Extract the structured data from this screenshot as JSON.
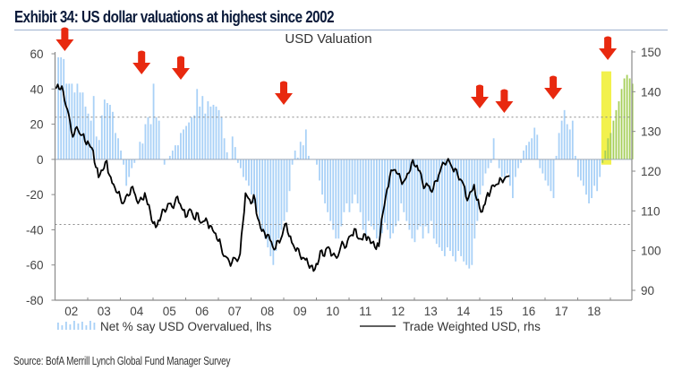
{
  "header": {
    "exhibit_title": "Exhibit 34: US dollar valuations at highest since 2002"
  },
  "footer": {
    "source": "Source: BofA Merrill Lynch Global Fund Manager Survey"
  },
  "colors": {
    "bars": "#a9d1f7",
    "line": "#000000",
    "arrow": "#e8290f",
    "highlight": "#f1f03a",
    "axis": "#8a8a8a",
    "ref_lines": "#8a8a8a"
  },
  "annotations": {
    "arrow_icon": "red-down-arrow-icon",
    "arrows_at": [
      2002.3,
      2004.65,
      2005.85,
      2009.0,
      2015.0,
      2015.75,
      2017.25,
      2018.92
    ],
    "highlight_range": [
      2018.75,
      2019.0
    ]
  },
  "chart_data": {
    "type": "bar+line",
    "title": "USD Valuation",
    "xlabel": "",
    "ylabel": "",
    "x_tick_labels": [
      "02",
      "03",
      "04",
      "05",
      "06",
      "07",
      "08",
      "09",
      "10",
      "11",
      "12",
      "13",
      "14",
      "15",
      "16",
      "17",
      "18"
    ],
    "x_range": [
      2002.0,
      2019.0
    ],
    "y_left": {
      "ticks": [
        60,
        40,
        20,
        0,
        -20,
        -40,
        -60,
        -80
      ],
      "range": [
        -80,
        60
      ]
    },
    "y_right": {
      "ticks": [
        150,
        140,
        130,
        120,
        110,
        100,
        90
      ],
      "range": [
        90,
        150
      ]
    },
    "reference_lines_lhs": [
      24,
      -37,
      0
    ],
    "grid": false,
    "legend_position": "bottom",
    "legend": [
      {
        "name": "Net % say USD Overvalued, lhs",
        "kind": "bar"
      },
      {
        "name": "Trade Weighted USD, rhs",
        "kind": "line"
      }
    ],
    "series": [
      {
        "name": "Net % say USD Overvalued, lhs",
        "axis": "left",
        "type": "bar",
        "start": 2002.1,
        "step_years": 0.0833,
        "values": [
          58,
          58,
          57,
          43,
          43,
          43,
          38,
          43,
          38,
          38,
          30,
          26,
          22,
          36,
          13,
          11,
          25,
          34,
          32,
          31,
          27,
          15,
          12,
          5,
          -3,
          -15,
          -10,
          -5,
          -2,
          0,
          10,
          9,
          20,
          24,
          20,
          43,
          24,
          22,
          0,
          -3,
          0,
          2,
          5,
          8,
          8,
          15,
          17,
          19,
          21,
          24,
          25,
          40,
          30,
          36,
          26,
          33,
          30,
          31,
          30,
          28,
          24,
          12,
          4,
          0,
          13,
          7,
          -2,
          -5,
          -10,
          -12,
          -15,
          -20,
          -25,
          -30,
          -35,
          -40,
          -45,
          -50,
          -55,
          -60,
          -52,
          -45,
          -40,
          -35,
          -30,
          -18,
          -3,
          5,
          1,
          10,
          8,
          17,
          2,
          0,
          0,
          -3,
          -12,
          -20,
          -25,
          -30,
          -35,
          -40,
          -45,
          -45,
          -38,
          -30,
          -25,
          -30,
          -25,
          -20,
          -25,
          -30,
          -40,
          -45,
          -35,
          -38,
          -40,
          -45,
          -48,
          -42,
          -36,
          -40,
          -45,
          -42,
          -38,
          -35,
          -25,
          -30,
          -35,
          -40,
          -45,
          -47,
          -40,
          -38,
          -45,
          -38,
          -42,
          -35,
          -45,
          -48,
          -50,
          -52,
          -55,
          -50,
          -52,
          -55,
          -58,
          -52,
          -55,
          -58,
          -60,
          -62,
          -60,
          -45,
          -35,
          -20,
          -15,
          -8,
          -5,
          -2,
          12,
          0,
          -5,
          -10,
          -12,
          -8,
          -15,
          -22,
          -10,
          -5,
          -2,
          5,
          8,
          10,
          12,
          18,
          14,
          -5,
          -8,
          -12,
          -15,
          -18,
          -22,
          2,
          15,
          22,
          28,
          20,
          17,
          22,
          2,
          -10,
          -12,
          -15,
          -20,
          -25,
          -22,
          -15,
          -18,
          -10,
          -2,
          5,
          12,
          15,
          22,
          28,
          33,
          40,
          46,
          48,
          46,
          43
        ]
      },
      {
        "name": "Trade Weighted USD, rhs",
        "axis": "right",
        "type": "line",
        "start": 2002.0,
        "step_years": 0.0833,
        "values": [
          140.5,
          141.5,
          141,
          140,
          137,
          134,
          130,
          129,
          131,
          130,
          129,
          128,
          127,
          126,
          125,
          121,
          119,
          120,
          121,
          122,
          119,
          117,
          116,
          115,
          113,
          112,
          113,
          114,
          116,
          115,
          113,
          112,
          113,
          114,
          112,
          110,
          107,
          106,
          107,
          109,
          110,
          111,
          112,
          111,
          112,
          113,
          112,
          110,
          109,
          110,
          110,
          108,
          109,
          108,
          107,
          108,
          107,
          106,
          105,
          104,
          103,
          101,
          99,
          98,
          97,
          97,
          98,
          98,
          99,
          107,
          114,
          113,
          112,
          114,
          110,
          107,
          105,
          104,
          104,
          103,
          101,
          101,
          102,
          103,
          105,
          107,
          104,
          102,
          101,
          100,
          99,
          98,
          98,
          97,
          96,
          95,
          96,
          98,
          100,
          99,
          101,
          100,
          99,
          98,
          99,
          101,
          102,
          101,
          103,
          104,
          105,
          104,
          103,
          103,
          104,
          103,
          102,
          102,
          101,
          101,
          108,
          111,
          115,
          119,
          120,
          121,
          119,
          118,
          117,
          118,
          120,
          122,
          122,
          121,
          120,
          117,
          116,
          117,
          115,
          116,
          117,
          119,
          121,
          122,
          123,
          122,
          121,
          120,
          119,
          118,
          117,
          114,
          113,
          115,
          116,
          113,
          111,
          110,
          112,
          114,
          115,
          116,
          117,
          117,
          118,
          118,
          118,
          119
        ]
      }
    ]
  }
}
